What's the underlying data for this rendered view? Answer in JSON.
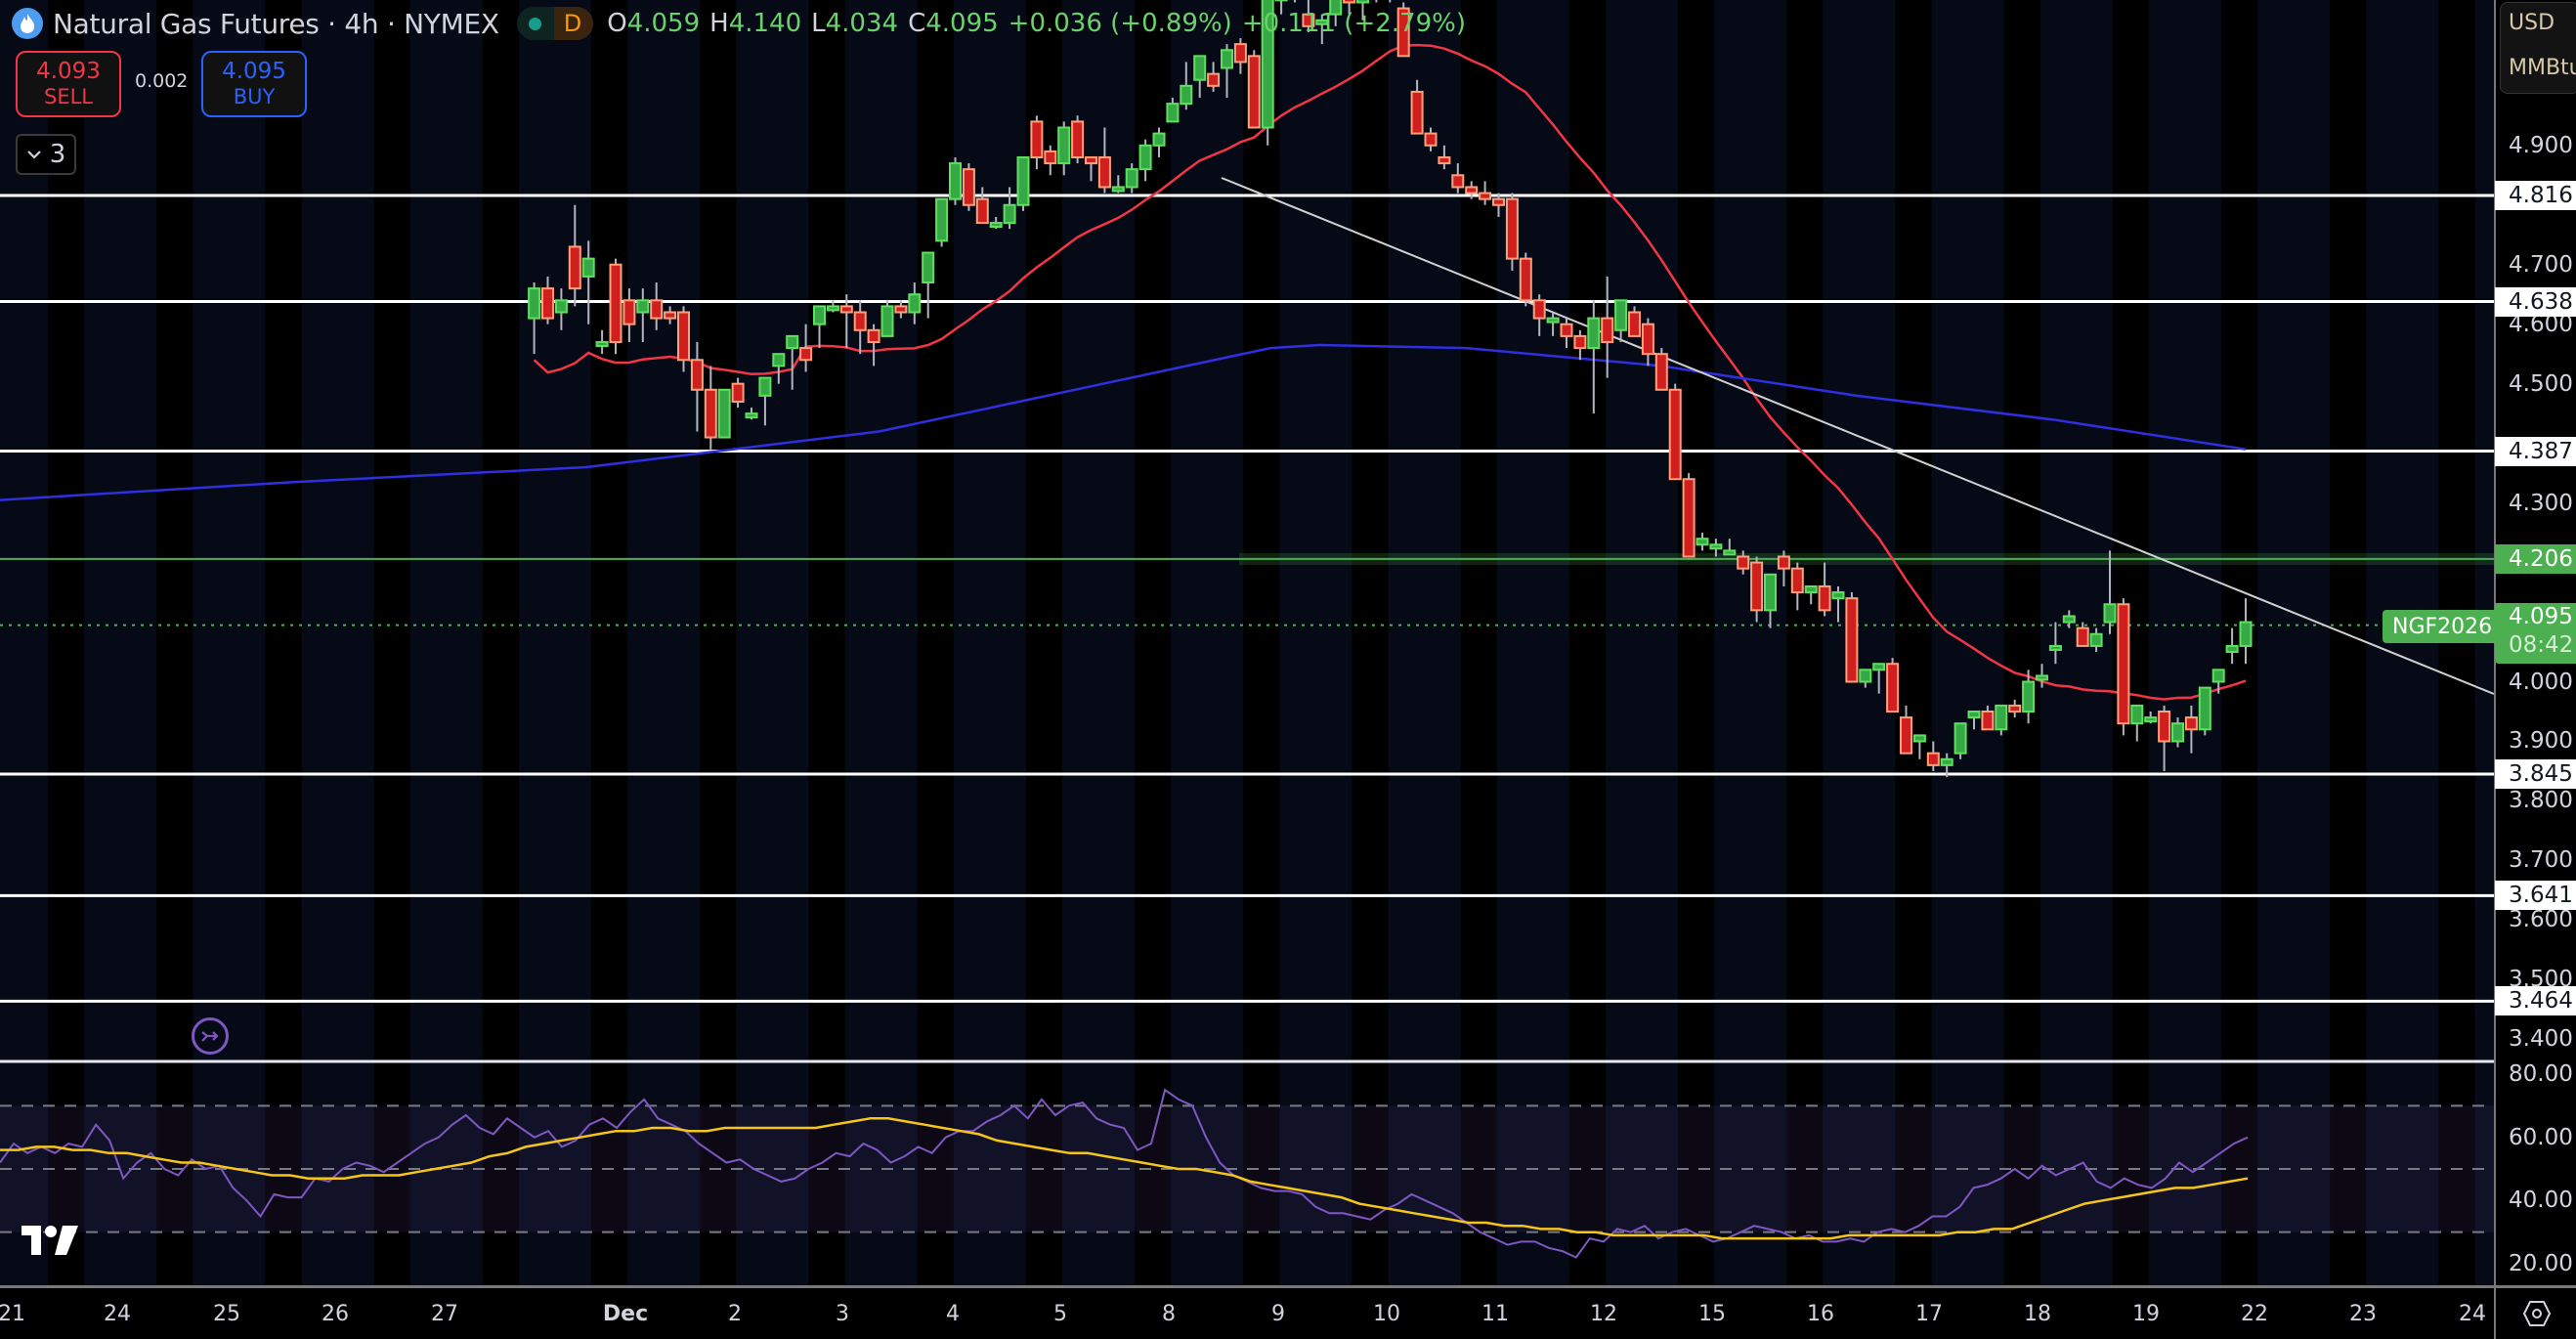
{
  "header": {
    "symbol_title": "Natural Gas Futures · 4h · NYMEX",
    "market_status_letter": "D",
    "ohlc": [
      {
        "key": "O",
        "value": "4.059"
      },
      {
        "key": "H",
        "value": "4.140"
      },
      {
        "key": "L",
        "value": "4.034"
      },
      {
        "key": "C",
        "value": "4.095"
      }
    ],
    "change": "+0.036 (+0.89%)",
    "change2": "+0.111 (+2.79%)"
  },
  "trade": {
    "sell_price": "4.093",
    "sell_label": "SELL",
    "spread": "0.002",
    "buy_price": "4.095",
    "buy_label": "BUY"
  },
  "indicators_toggle": {
    "count": "3"
  },
  "price_axis": {
    "currency": "USD",
    "unit": "MMBtu",
    "ticks": [
      "4.900",
      "4.700",
      "4.600",
      "4.500",
      "4.300",
      "4.000",
      "3.900",
      "3.800",
      "3.700",
      "3.600",
      "3.500",
      "3.400"
    ],
    "level_labels": [
      "4.816",
      "4.638",
      "4.387",
      "3.845",
      "3.641",
      "3.464"
    ],
    "zone_label": "4.206",
    "current_price": "4.095",
    "countdown": "08:42",
    "symbol_badge": "NGF2026"
  },
  "rsi_axis": {
    "ticks": [
      "80.00",
      "60.00",
      "40.00",
      "20.00"
    ]
  },
  "time_axis": {
    "labels": [
      "21",
      "24",
      "25",
      "26",
      "27",
      "Dec",
      "2",
      "3",
      "4",
      "5",
      "8",
      "9",
      "10",
      "11",
      "12",
      "15",
      "16",
      "17",
      "18",
      "19",
      "22",
      "23",
      "24"
    ]
  },
  "colors": {
    "up": "#4caf50",
    "up_fill": "#36a845",
    "down": "#ffa07a",
    "down_fill": "#d01f1f",
    "ma_fast": "#f23645",
    "ma_slow": "#2f2fe0",
    "trendline": "#d0d0d0",
    "rsi": "#7e57c2",
    "rsi_ma": "#f5c518",
    "zone": "#4caf50",
    "bg_a": "#050a16",
    "bg_b": "#000000"
  },
  "chart_data": [
    {
      "type": "candlestick",
      "title": "Natural Gas Futures · 4h · NYMEX",
      "ylabel": "USD / MMBtu",
      "ylim": [
        3.36,
        5.15
      ],
      "x_labels": [
        "21",
        "24",
        "25",
        "26",
        "27",
        "Dec",
        "2",
        "3",
        "4",
        "5",
        "8",
        "9",
        "10",
        "11",
        "12",
        "15",
        "16",
        "17",
        "18",
        "19",
        "22"
      ],
      "ohlc": [
        [
          4.61,
          4.67,
          4.55,
          4.66
        ],
        [
          4.66,
          4.68,
          4.6,
          4.61
        ],
        [
          4.62,
          4.66,
          4.59,
          4.64
        ],
        [
          4.73,
          4.8,
          4.63,
          4.66
        ],
        [
          4.68,
          4.74,
          4.6,
          4.71
        ],
        [
          4.57,
          4.59,
          4.55,
          4.57
        ],
        [
          4.7,
          4.71,
          4.55,
          4.57
        ],
        [
          4.64,
          4.66,
          4.57,
          4.6
        ],
        [
          4.62,
          4.66,
          4.57,
          4.64
        ],
        [
          4.64,
          4.67,
          4.59,
          4.61
        ],
        [
          4.62,
          4.63,
          4.6,
          4.61
        ],
        [
          4.62,
          4.63,
          4.52,
          4.54
        ],
        [
          4.54,
          4.57,
          4.42,
          4.49
        ],
        [
          4.49,
          4.53,
          4.39,
          4.41
        ],
        [
          4.41,
          4.49,
          4.42,
          4.49
        ],
        [
          4.5,
          4.51,
          4.46,
          4.47
        ],
        [
          4.45,
          4.46,
          4.44,
          4.45
        ],
        [
          4.48,
          4.51,
          4.43,
          4.51
        ],
        [
          4.53,
          4.55,
          4.5,
          4.55
        ],
        [
          4.56,
          4.58,
          4.49,
          4.58
        ],
        [
          4.56,
          4.6,
          4.52,
          4.54
        ],
        [
          4.6,
          4.63,
          4.56,
          4.63
        ],
        [
          4.63,
          4.64,
          4.62,
          4.63
        ],
        [
          4.63,
          4.65,
          4.56,
          4.62
        ],
        [
          4.62,
          4.64,
          4.55,
          4.59
        ],
        [
          4.59,
          4.6,
          4.53,
          4.57
        ],
        [
          4.58,
          4.64,
          4.59,
          4.63
        ],
        [
          4.63,
          4.64,
          4.61,
          4.62
        ],
        [
          4.62,
          4.67,
          4.6,
          4.65
        ],
        [
          4.67,
          4.72,
          4.61,
          4.72
        ],
        [
          4.74,
          4.81,
          4.73,
          4.81
        ],
        [
          4.81,
          4.88,
          4.8,
          4.87
        ],
        [
          4.86,
          4.87,
          4.79,
          4.8
        ],
        [
          4.81,
          4.83,
          4.78,
          4.77
        ],
        [
          4.77,
          4.78,
          4.76,
          4.77
        ],
        [
          4.77,
          4.83,
          4.76,
          4.8
        ],
        [
          4.8,
          4.88,
          4.79,
          4.88
        ],
        [
          4.94,
          4.95,
          4.86,
          4.88
        ],
        [
          4.89,
          4.9,
          4.85,
          4.87
        ],
        [
          4.87,
          4.94,
          4.85,
          4.93
        ],
        [
          4.94,
          4.95,
          4.87,
          4.88
        ],
        [
          4.88,
          4.88,
          4.84,
          4.87
        ],
        [
          4.88,
          4.93,
          4.82,
          4.83
        ],
        [
          4.83,
          4.85,
          4.82,
          4.83
        ],
        [
          4.83,
          4.87,
          4.82,
          4.86
        ],
        [
          4.86,
          4.91,
          4.84,
          4.9
        ],
        [
          4.9,
          4.93,
          4.88,
          4.92
        ],
        [
          4.94,
          4.98,
          4.94,
          4.97
        ],
        [
          4.97,
          5.04,
          4.96,
          5.0
        ],
        [
          5.01,
          5.03,
          4.98,
          5.05
        ],
        [
          5.02,
          5.04,
          4.99,
          5.0
        ],
        [
          5.03,
          5.07,
          4.98,
          5.06
        ],
        [
          5.07,
          5.08,
          5.02,
          5.04
        ],
        [
          5.05,
          5.06,
          4.93,
          4.93
        ],
        [
          4.93,
          5.16,
          4.9,
          5.15
        ],
        [
          5.15,
          5.16,
          5.12,
          5.15
        ],
        [
          5.15,
          5.16,
          5.14,
          5.16
        ],
        [
          5.12,
          5.15,
          5.09,
          5.1
        ],
        [
          5.11,
          5.12,
          5.07,
          5.11
        ],
        [
          5.12,
          5.18,
          5.1,
          5.16
        ],
        [
          5.16,
          5.19,
          5.12,
          5.14
        ],
        [
          5.14,
          5.15,
          5.11,
          5.15
        ],
        [
          5.15,
          5.17,
          5.14,
          5.16
        ],
        [
          5.16,
          5.18,
          5.14,
          5.15
        ],
        [
          5.13,
          5.14,
          5.05,
          5.05
        ],
        [
          4.99,
          5.01,
          4.92,
          4.92
        ],
        [
          4.92,
          4.93,
          4.89,
          4.9
        ],
        [
          4.88,
          4.9,
          4.86,
          4.87
        ],
        [
          4.85,
          4.87,
          4.82,
          4.83
        ],
        [
          4.83,
          4.84,
          4.81,
          4.82
        ],
        [
          4.82,
          4.84,
          4.8,
          4.81
        ],
        [
          4.81,
          4.82,
          4.78,
          4.8
        ],
        [
          4.81,
          4.82,
          4.69,
          4.71
        ],
        [
          4.71,
          4.72,
          4.63,
          4.64
        ],
        [
          4.64,
          4.65,
          4.58,
          4.61
        ],
        [
          4.61,
          4.62,
          4.58,
          4.61
        ],
        [
          4.6,
          4.61,
          4.56,
          4.58
        ],
        [
          4.58,
          4.59,
          4.54,
          4.56
        ],
        [
          4.56,
          4.64,
          4.45,
          4.61
        ],
        [
          4.61,
          4.68,
          4.51,
          4.57
        ],
        [
          4.59,
          4.64,
          4.57,
          4.64
        ],
        [
          4.62,
          4.63,
          4.59,
          4.58
        ],
        [
          4.6,
          4.61,
          4.53,
          4.55
        ],
        [
          4.55,
          4.56,
          4.49,
          4.49
        ],
        [
          4.49,
          4.5,
          4.35,
          4.34
        ],
        [
          4.34,
          4.35,
          4.21,
          4.21
        ],
        [
          4.23,
          4.25,
          4.22,
          4.24
        ],
        [
          4.23,
          4.24,
          4.21,
          4.23
        ],
        [
          4.22,
          4.24,
          4.22,
          4.22
        ],
        [
          4.21,
          4.22,
          4.18,
          4.19
        ],
        [
          4.2,
          4.21,
          4.1,
          4.12
        ],
        [
          4.12,
          4.16,
          4.09,
          4.18
        ],
        [
          4.21,
          4.22,
          4.16,
          4.19
        ],
        [
          4.19,
          4.2,
          4.12,
          4.15
        ],
        [
          4.15,
          4.16,
          4.13,
          4.16
        ],
        [
          4.16,
          4.2,
          4.11,
          4.12
        ],
        [
          4.14,
          4.16,
          4.1,
          4.15
        ],
        [
          4.14,
          4.15,
          4.0,
          4.0
        ],
        [
          4.0,
          4.02,
          3.99,
          4.02
        ],
        [
          4.02,
          4.03,
          3.98,
          4.03
        ],
        [
          4.03,
          4.04,
          3.95,
          3.95
        ],
        [
          3.94,
          3.96,
          3.88,
          3.88
        ],
        [
          3.9,
          3.91,
          3.87,
          3.91
        ],
        [
          3.88,
          3.9,
          3.85,
          3.86
        ],
        [
          3.86,
          3.88,
          3.84,
          3.87
        ],
        [
          3.88,
          3.93,
          3.87,
          3.93
        ],
        [
          3.94,
          3.95,
          3.92,
          3.95
        ],
        [
          3.95,
          3.96,
          3.92,
          3.92
        ],
        [
          3.92,
          3.96,
          3.91,
          3.96
        ],
        [
          3.96,
          3.97,
          3.94,
          3.95
        ],
        [
          3.95,
          4.02,
          3.93,
          4.0
        ],
        [
          4.01,
          4.03,
          3.99,
          4.01
        ],
        [
          4.06,
          4.1,
          4.03,
          4.06
        ],
        [
          4.1,
          4.12,
          4.09,
          4.11
        ],
        [
          4.09,
          4.1,
          4.06,
          4.06
        ],
        [
          4.06,
          4.09,
          4.05,
          4.08
        ],
        [
          4.1,
          4.22,
          4.08,
          4.13
        ],
        [
          4.13,
          4.14,
          3.91,
          3.93
        ],
        [
          3.93,
          3.96,
          3.9,
          3.96
        ],
        [
          3.94,
          3.95,
          3.93,
          3.94
        ],
        [
          3.95,
          3.96,
          3.85,
          3.9
        ],
        [
          3.9,
          3.94,
          3.89,
          3.93
        ],
        [
          3.94,
          3.96,
          3.88,
          3.92
        ],
        [
          3.92,
          3.99,
          3.91,
          3.99
        ],
        [
          4.0,
          4.02,
          3.98,
          4.02
        ],
        [
          4.05,
          4.09,
          4.03,
          4.06
        ],
        [
          4.06,
          4.14,
          4.03,
          4.1
        ]
      ],
      "lines": [
        {
          "name": "MA fast (red)",
          "values_note": "rises from ~4.49 to peak ~4.96 around Dec 8, declines to ~4.17 at Dec 22"
        },
        {
          "name": "MA slow (blue)",
          "values_note": "rises from ~4.31 to ~4.56 around Dec 9, declines to ~4.39 at Dec 22"
        },
        {
          "name": "Trendline",
          "from": [
            "Dec 8",
            4.93
          ],
          "to": [
            "23+",
            4.0
          ]
        }
      ],
      "horizontal_levels": [
        4.816,
        4.638,
        4.387,
        4.206,
        3.845,
        3.641,
        3.464
      ],
      "current_price": 4.095
    },
    {
      "type": "line",
      "title": "RSI",
      "ylim": [
        15,
        85
      ],
      "bands": [
        70,
        50,
        30
      ],
      "series": [
        {
          "name": "RSI",
          "values": [
            52,
            58,
            55,
            57,
            55,
            58,
            57,
            64,
            59,
            47,
            52,
            55,
            50,
            48,
            53,
            50,
            51,
            44,
            40,
            35,
            42,
            41,
            41,
            47,
            46,
            50,
            52,
            51,
            49,
            52,
            55,
            58,
            60,
            64,
            67,
            63,
            61,
            66,
            63,
            60,
            62,
            57,
            59,
            64,
            66,
            63,
            68,
            72,
            66,
            64,
            62,
            58,
            55,
            52,
            53,
            50,
            48,
            46,
            47,
            50,
            52,
            55,
            54,
            58,
            56,
            52,
            54,
            57,
            55,
            60,
            62,
            62,
            65,
            67,
            70,
            66,
            72,
            67,
            70,
            71,
            66,
            64,
            63,
            56,
            58,
            75,
            72,
            70,
            60,
            52,
            48,
            46,
            44,
            43,
            43,
            42,
            38,
            36,
            36,
            35,
            34,
            37,
            39,
            42,
            40,
            38,
            36,
            33,
            30,
            28,
            26,
            27,
            27,
            25,
            24,
            22,
            28,
            27,
            31,
            30,
            32,
            28,
            30,
            31,
            29,
            27,
            28,
            30,
            32,
            31,
            30,
            28,
            29,
            27,
            27,
            28,
            27,
            30,
            31,
            30,
            32,
            35,
            35,
            38,
            44,
            45,
            47,
            50,
            47,
            51,
            48,
            50,
            52,
            46,
            44,
            47,
            45,
            44,
            47,
            52,
            49,
            52,
            55,
            58,
            60
          ]
        },
        {
          "name": "RSI MA",
          "values": [
            56,
            56,
            57,
            57,
            56,
            56,
            55,
            55,
            54,
            53,
            52,
            52,
            51,
            50,
            49,
            48,
            48,
            47,
            47,
            47,
            48,
            48,
            48,
            49,
            50,
            51,
            52,
            54,
            55,
            57,
            58,
            59,
            60,
            61,
            62,
            62,
            63,
            63,
            62,
            62,
            63,
            63,
            63,
            63,
            63,
            63,
            64,
            65,
            66,
            66,
            65,
            64,
            63,
            62,
            61,
            59,
            58,
            57,
            56,
            55,
            55,
            54,
            53,
            52,
            51,
            50,
            50,
            49,
            48,
            46,
            45,
            44,
            43,
            42,
            41,
            39,
            38,
            37,
            36,
            35,
            34,
            33,
            33,
            32,
            32,
            31,
            31,
            30,
            30,
            29,
            29,
            29,
            29,
            29,
            29,
            28,
            28,
            28,
            28,
            28,
            28,
            28,
            29,
            29,
            29,
            29,
            29,
            29,
            30,
            30,
            31,
            31,
            33,
            35,
            37,
            39,
            40,
            41,
            42,
            43,
            44,
            44,
            45,
            46,
            47
          ]
        }
      ]
    }
  ]
}
